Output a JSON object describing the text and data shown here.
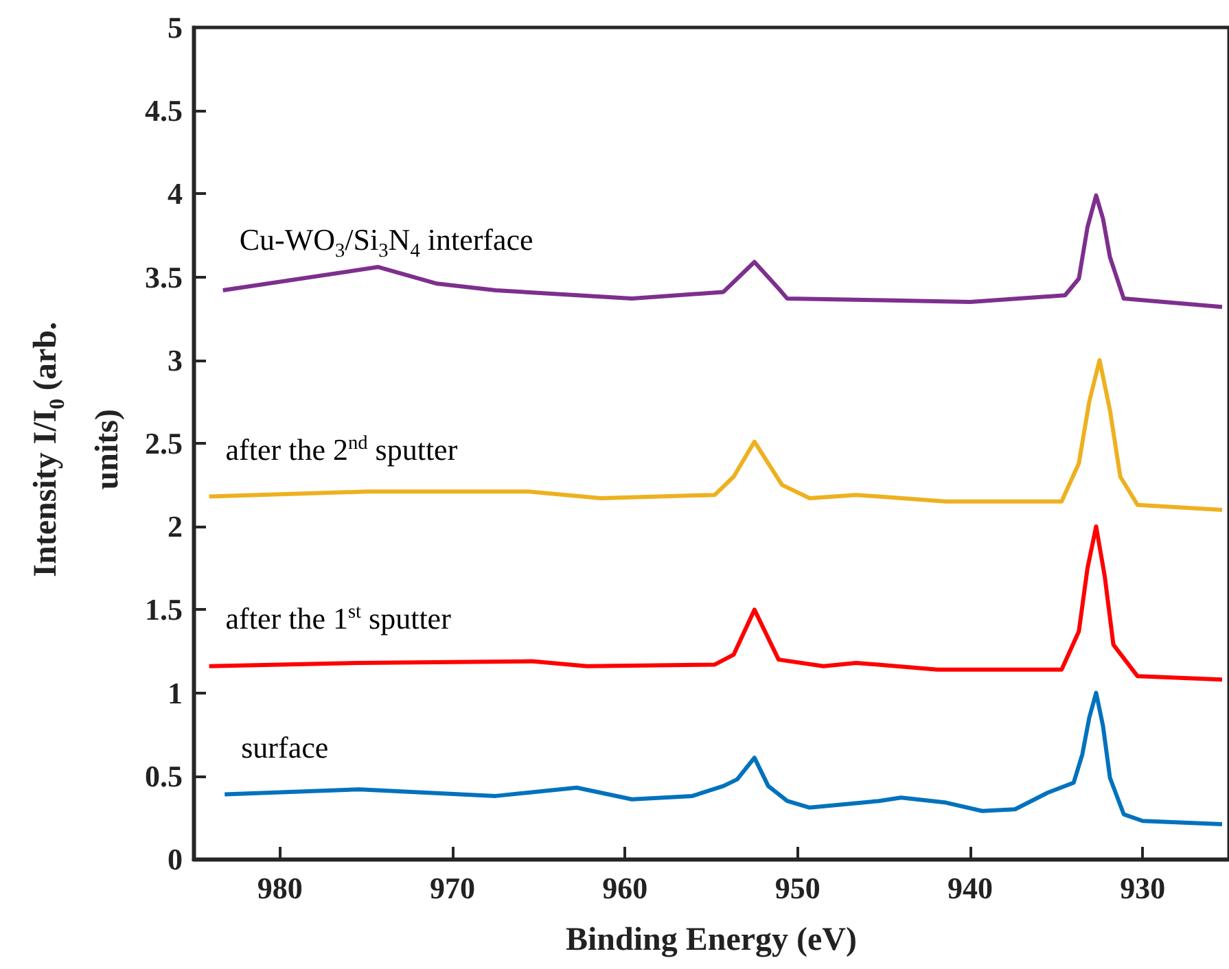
{
  "chart_data": {
    "type": "line",
    "xlabel": "Binding Energy (eV)",
    "ylabel": "Intensity I/I$_{0}$ (arb. units)",
    "xlim": [
      985,
      925
    ],
    "xticks": [
      980,
      970,
      960,
      950,
      940,
      930
    ],
    "ylim": [
      0,
      5
    ],
    "yticks": [
      0,
      0.5,
      1,
      1.5,
      2,
      2.5,
      3,
      3.5,
      4,
      4.5,
      5
    ],
    "grid": false,
    "marker": "none",
    "line_style": "solid",
    "series": [
      {
        "name": "surface",
        "color": "#0072bd",
        "x": [
          983.2,
          975.4,
          967.5,
          962.8,
          959.6,
          956.1,
          954.3,
          953.5,
          952.5,
          951.7,
          950.6,
          949.3,
          945.3,
          944,
          941.4,
          939.3,
          937.4,
          935.5,
          934,
          933.5,
          933.1,
          932.7,
          932.3,
          931.9,
          931.1,
          930,
          925.4
        ],
        "values": [
          0.39,
          0.42,
          0.38,
          0.43,
          0.36,
          0.38,
          0.44,
          0.48,
          0.61,
          0.44,
          0.35,
          0.31,
          0.35,
          0.37,
          0.34,
          0.29,
          0.3,
          0.4,
          0.46,
          0.63,
          0.85,
          1.0,
          0.8,
          0.49,
          0.27,
          0.23,
          0.21
        ]
      },
      {
        "name": "after the 1$^{st}$ sputter",
        "color": "#ff0000",
        "x": [
          984.1,
          975.4,
          965.4,
          962.2,
          954.8,
          953.7,
          952.5,
          951.1,
          948.5,
          946.6,
          941.9,
          934.7,
          933.7,
          933.2,
          932.7,
          932.2,
          931.7,
          930.3,
          925.4
        ],
        "values": [
          1.16,
          1.18,
          1.19,
          1.16,
          1.17,
          1.23,
          1.5,
          1.2,
          1.16,
          1.18,
          1.14,
          1.14,
          1.37,
          1.75,
          2.0,
          1.7,
          1.29,
          1.1,
          1.08
        ]
      },
      {
        "name": "after the 2$^{nd}$ sputter",
        "color": "#edb120",
        "x": [
          984.1,
          974.9,
          965.6,
          961.4,
          954.8,
          953.7,
          952.5,
          950.9,
          949.3,
          946.6,
          941.4,
          934.7,
          933.7,
          933.1,
          932.5,
          931.9,
          931.3,
          930.3,
          925.4
        ],
        "values": [
          2.18,
          2.21,
          2.21,
          2.17,
          2.19,
          2.3,
          2.51,
          2.25,
          2.17,
          2.19,
          2.15,
          2.15,
          2.38,
          2.75,
          3.0,
          2.7,
          2.3,
          2.13,
          2.1
        ]
      },
      {
        "name": "Cu-WO$_{3}$/Si$_{3}$N$_{4}$ interface",
        "color": "#7e2f8e",
        "x": [
          983.3,
          974.3,
          970.9,
          967.5,
          959.6,
          954.3,
          952.5,
          951.1,
          950.6,
          945,
          940,
          934.5,
          933.7,
          933.2,
          932.7,
          932.3,
          931.9,
          931.1,
          925.4
        ],
        "values": [
          3.42,
          3.56,
          3.46,
          3.42,
          3.37,
          3.41,
          3.59,
          3.43,
          3.37,
          3.36,
          3.35,
          3.39,
          3.49,
          3.8,
          3.99,
          3.85,
          3.62,
          3.37,
          3.32
        ]
      }
    ]
  }
}
